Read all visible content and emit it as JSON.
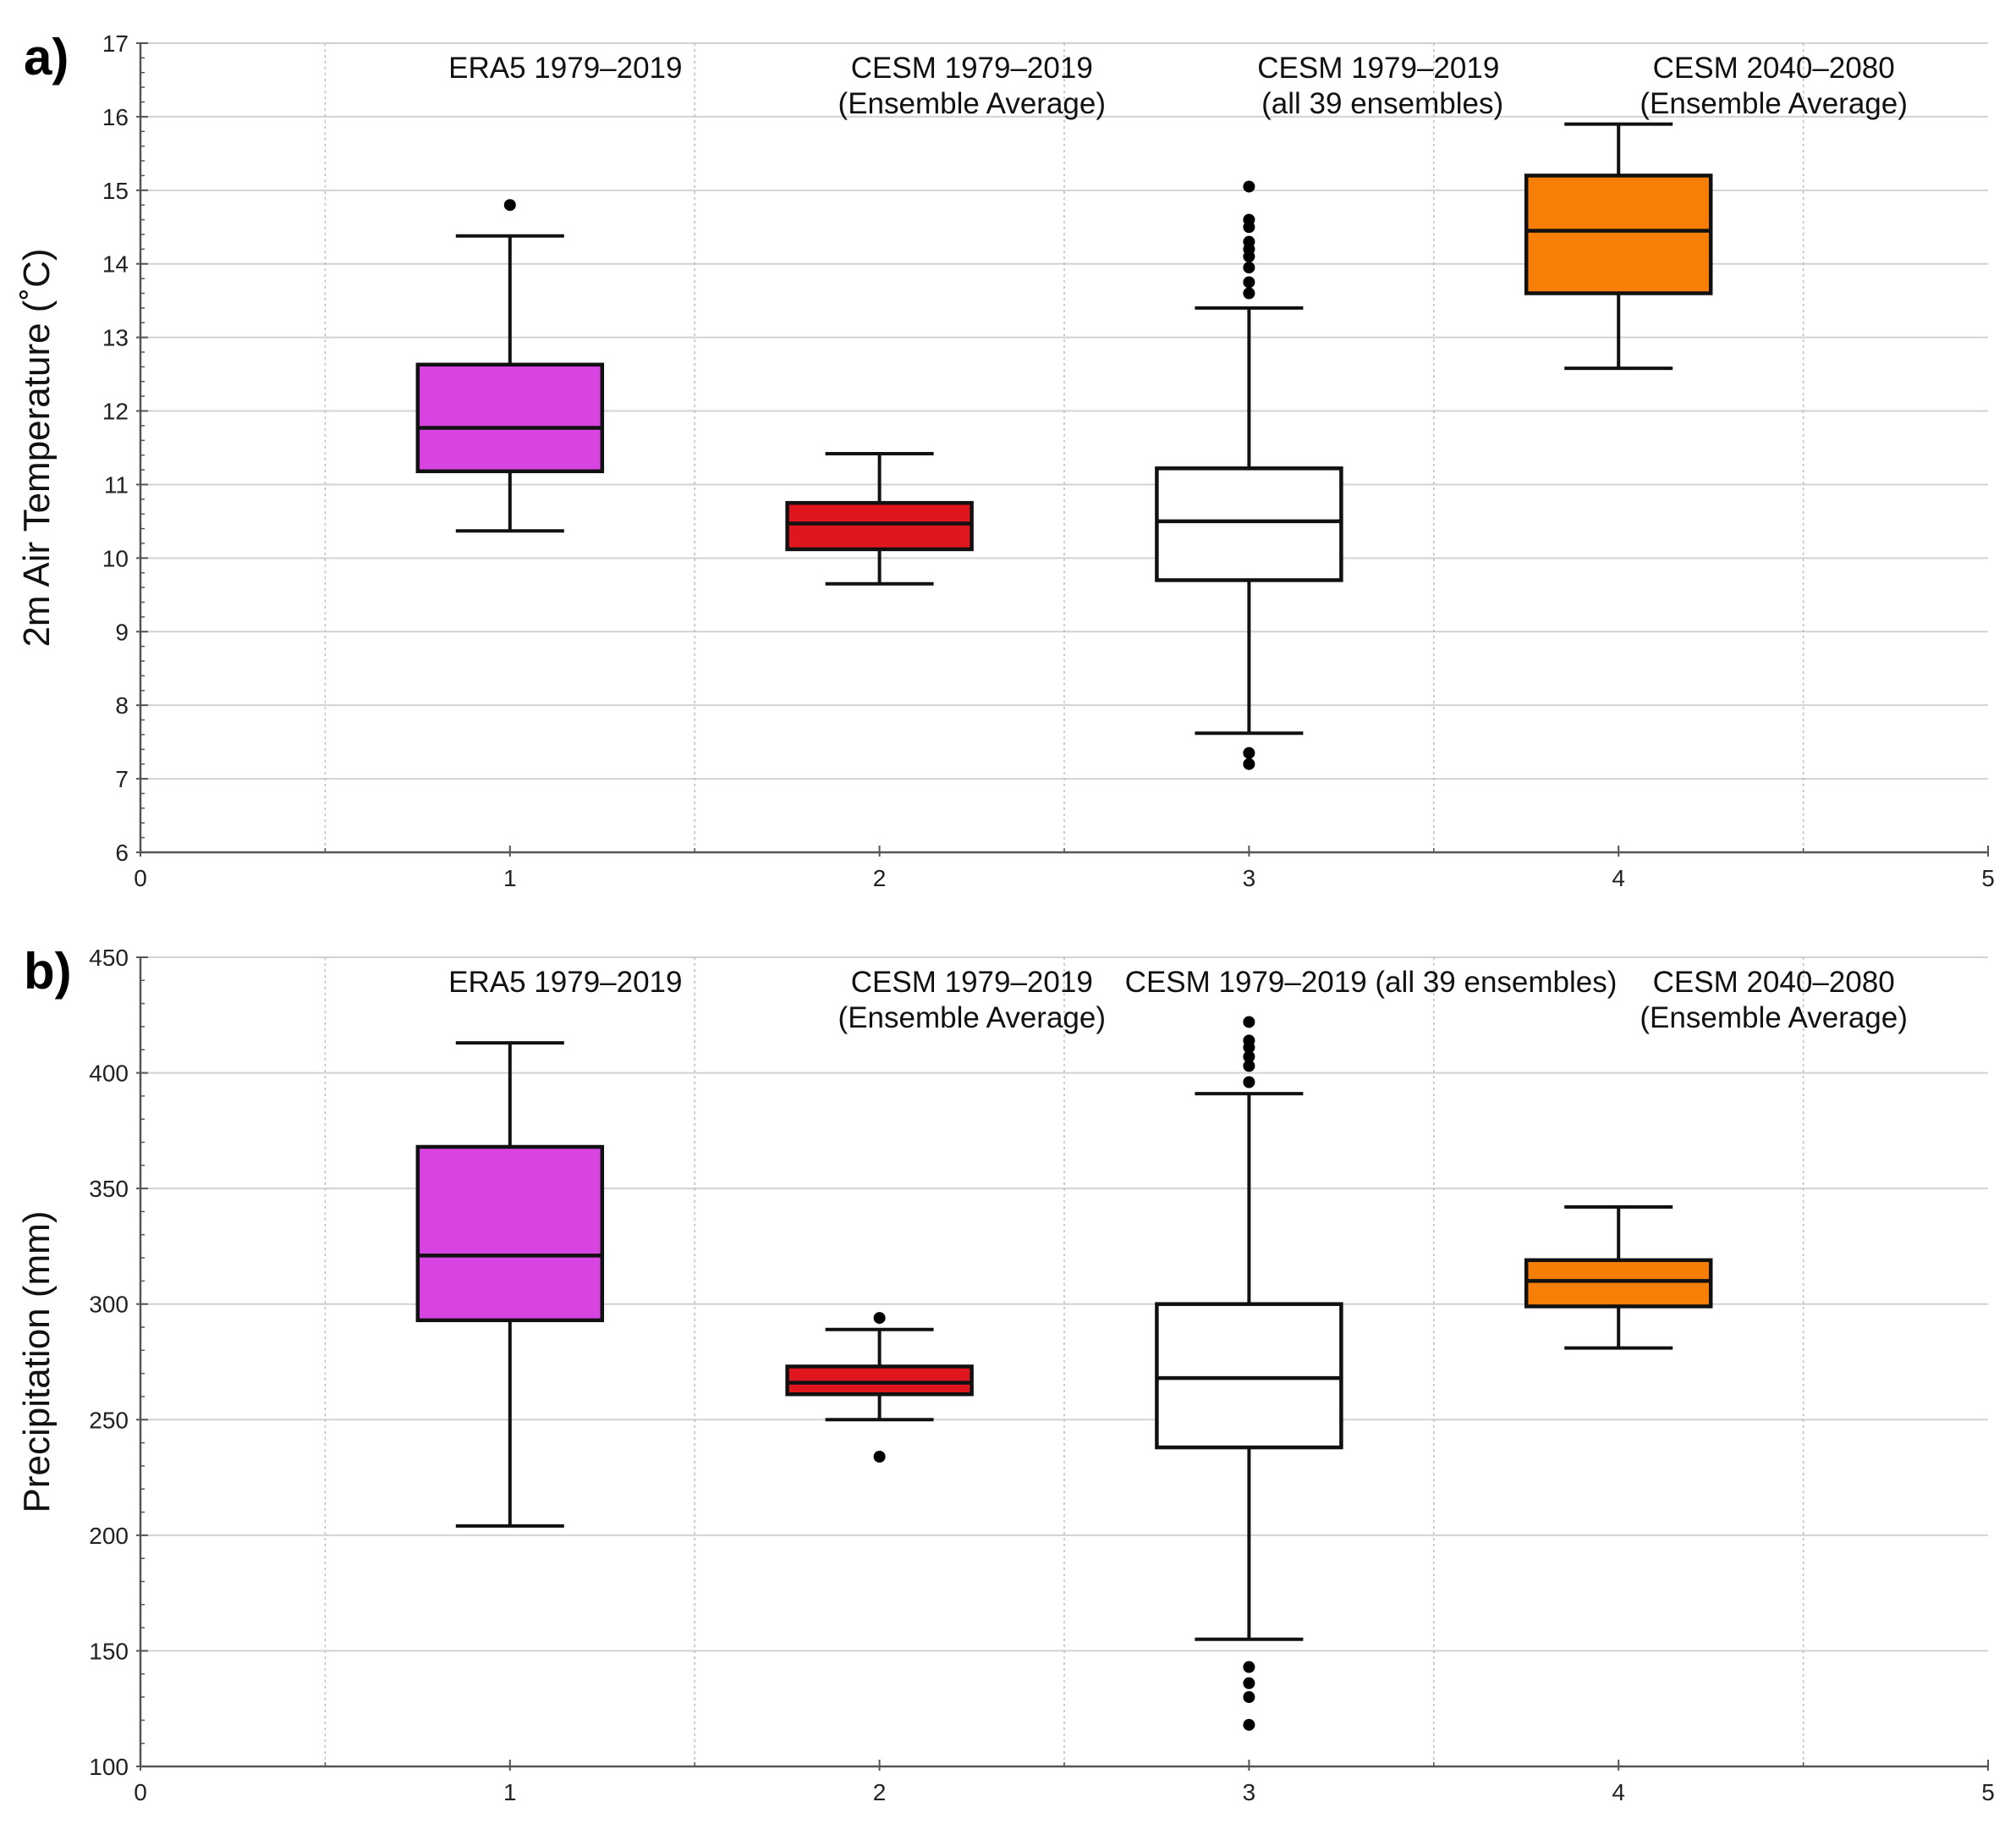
{
  "chart_data": [
    {
      "panel": "a)",
      "type": "box",
      "ylabel": "2m Air Temperature (˚C)",
      "xlim": [
        0,
        5
      ],
      "ylim": [
        6,
        17
      ],
      "x_ticks": [
        0,
        1,
        2,
        3,
        4,
        5
      ],
      "y_ticks": [
        6,
        7,
        8,
        9,
        10,
        11,
        12,
        13,
        14,
        15,
        16,
        17
      ],
      "group_labels": [
        {
          "x": 1.15,
          "lines": [
            "ERA5 1979–2019"
          ]
        },
        {
          "x": 2.25,
          "lines": [
            "CESM 1979–2019",
            "(Ensemble Average)"
          ]
        },
        {
          "x": 3.35,
          "lines": [
            "CESM 1979–2019",
            " (all 39 ensembles)"
          ]
        },
        {
          "x": 4.42,
          "lines": [
            "CESM 2040–2080",
            "(Ensemble Average)"
          ]
        }
      ],
      "boxes": [
        {
          "x": 1,
          "whisker_low": 10.37,
          "q1": 11.18,
          "median": 11.77,
          "q3": 12.63,
          "whisker_high": 14.38,
          "outliers": [
            14.8
          ],
          "color": "#d844e2"
        },
        {
          "x": 2,
          "whisker_low": 9.65,
          "q1": 10.12,
          "median": 10.47,
          "q3": 10.75,
          "whisker_high": 11.42,
          "outliers": [],
          "color": "#e0161f"
        },
        {
          "x": 3,
          "whisker_low": 7.62,
          "q1": 9.7,
          "median": 10.5,
          "q3": 11.22,
          "whisker_high": 13.4,
          "outliers": [
            15.05,
            14.6,
            14.5,
            14.3,
            14.2,
            14.1,
            13.95,
            13.75,
            13.6,
            7.35,
            7.2
          ],
          "color": "#ffffff"
        },
        {
          "x": 4,
          "whisker_low": 12.58,
          "q1": 13.6,
          "median": 14.45,
          "q3": 15.2,
          "whisker_high": 15.9,
          "outliers": [],
          "color": "#f77f08"
        }
      ]
    },
    {
      "panel": "b)",
      "type": "box",
      "ylabel": "Precipitation (mm)",
      "xlim": [
        0,
        5
      ],
      "ylim": [
        100,
        450
      ],
      "x_ticks": [
        0,
        1,
        2,
        3,
        4,
        5
      ],
      "y_ticks": [
        100,
        150,
        200,
        250,
        300,
        350,
        400,
        450
      ],
      "group_labels": [
        {
          "x": 1.15,
          "lines": [
            "ERA5 1979–2019"
          ]
        },
        {
          "x": 2.25,
          "lines": [
            "CESM 1979–2019",
            "(Ensemble Average)"
          ]
        },
        {
          "x": 3.33,
          "lines": [
            "CESM 1979–2019 (all 39 ensembles)"
          ]
        },
        {
          "x": 4.42,
          "lines": [
            "CESM 2040–2080",
            "(Ensemble Average)"
          ]
        }
      ],
      "boxes": [
        {
          "x": 1,
          "whisker_low": 204,
          "q1": 293,
          "median": 321,
          "q3": 368,
          "whisker_high": 413,
          "outliers": [],
          "color": "#d844e2"
        },
        {
          "x": 2,
          "whisker_low": 250,
          "q1": 261,
          "median": 266,
          "q3": 273,
          "whisker_high": 289,
          "outliers": [
            294,
            234
          ],
          "color": "#e0161f"
        },
        {
          "x": 3,
          "whisker_low": 155,
          "q1": 238,
          "median": 268,
          "q3": 300,
          "whisker_high": 391,
          "outliers": [
            422,
            414,
            411,
            407,
            403,
            396,
            143,
            136,
            130,
            118
          ],
          "color": "#ffffff"
        },
        {
          "x": 4,
          "whisker_low": 281,
          "q1": 299,
          "median": 310,
          "q3": 319,
          "whisker_high": 342,
          "outliers": [],
          "color": "#f77f08"
        }
      ]
    }
  ]
}
